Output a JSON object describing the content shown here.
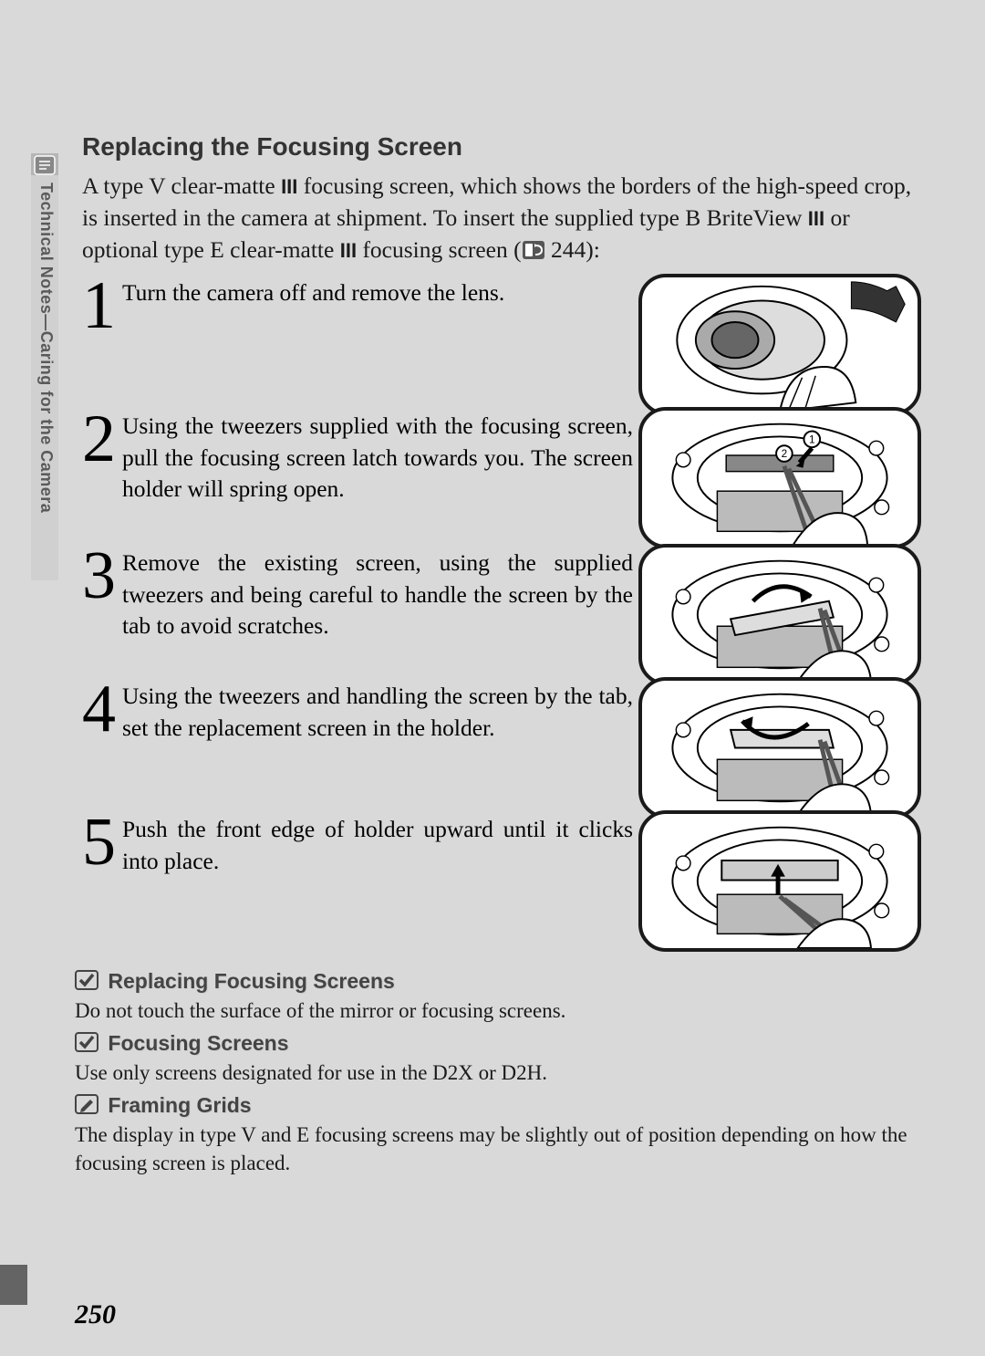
{
  "sidebar": {
    "label": "Technical Notes—Caring for the Camera"
  },
  "title": "Replacing the Focusing Screen",
  "intro": {
    "line1": "A type V clear-matte ",
    "roman1": "III",
    "line2": "  focusing screen, which shows the borders of the high-speed crop, is inserted in the camera at shipment.  To insert the supplied type B BriteView ",
    "roman2": "III",
    "line3": "  or optional type E clear-matte ",
    "roman3": "III",
    "line4": "  focusing screen (",
    "page_ref": " 244):"
  },
  "steps": [
    {
      "num": "1",
      "text": "Turn the camera off and remove the lens."
    },
    {
      "num": "2",
      "text": "Using the tweezers supplied with the focusing screen, pull the focusing screen latch towards you.  The screen holder will spring open."
    },
    {
      "num": "3",
      "text": "Remove the existing screen, using the supplied tweezers and being careful to handle the screen by the tab to avoid scratches."
    },
    {
      "num": "4",
      "text": "Using the tweezers and handling the screen by the tab, set the replacement screen in the holder."
    },
    {
      "num": "5",
      "text": "Push the front edge of holder upward until it clicks into place."
    }
  ],
  "notes": [
    {
      "icon": "check",
      "title": "Replacing Focusing Screens",
      "body": "Do not touch the surface of the mirror or focusing screens."
    },
    {
      "icon": "check",
      "title": "Focusing Screens",
      "body": "Use only screens designated for use in the D2X or D2H."
    },
    {
      "icon": "pencil",
      "title": "Framing Grids",
      "body": "The display in type V and E focusing screens may be slightly out of position depending on how the focusing screen is placed."
    }
  ],
  "page_number": "250",
  "layout": {
    "step_tops": [
      304,
      450,
      600,
      746,
      892
    ],
    "note_tops": [
      1062,
      1130,
      1198
    ]
  }
}
